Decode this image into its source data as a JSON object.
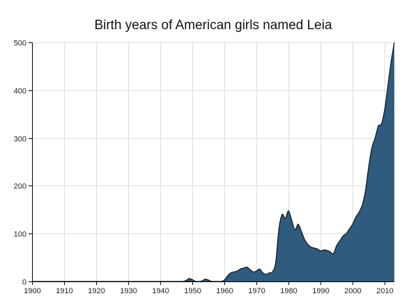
{
  "chart_data": {
    "type": "area",
    "title": "Birth years of American girls named Leia",
    "xlabel": "",
    "ylabel": "",
    "xlim": [
      1900,
      2013
    ],
    "ylim": [
      0,
      500
    ],
    "x_ticks": [
      1900,
      1910,
      1920,
      1930,
      1940,
      1950,
      1960,
      1970,
      1980,
      1990,
      2000,
      2010
    ],
    "y_ticks": [
      0,
      100,
      200,
      300,
      400,
      500
    ],
    "grid": true,
    "fill_color": "#2e5b7e",
    "line_color": "#111111",
    "x": [
      1900,
      1946,
      1947,
      1948,
      1949,
      1950,
      1951,
      1952,
      1953,
      1954,
      1955,
      1956,
      1957,
      1958,
      1959,
      1960,
      1961,
      1962,
      1963,
      1964,
      1965,
      1966,
      1967,
      1968,
      1969,
      1970,
      1971,
      1972,
      1973,
      1974,
      1975,
      1976,
      1977,
      1978,
      1979,
      1980,
      1981,
      1982,
      1983,
      1984,
      1985,
      1986,
      1987,
      1988,
      1989,
      1990,
      1991,
      1992,
      1993,
      1994,
      1995,
      1996,
      1997,
      1998,
      1999,
      2000,
      2001,
      2002,
      2003,
      2004,
      2005,
      2006,
      2007,
      2008,
      2009,
      2010,
      2011,
      2012,
      2013
    ],
    "values": [
      0,
      0,
      0,
      2,
      6,
      4,
      0,
      0,
      1,
      5,
      3,
      0,
      0,
      0,
      0,
      3,
      12,
      18,
      20,
      22,
      26,
      28,
      30,
      25,
      20,
      22,
      26,
      18,
      15,
      18,
      20,
      40,
      110,
      140,
      132,
      148,
      128,
      108,
      120,
      105,
      88,
      78,
      72,
      70,
      68,
      64,
      66,
      65,
      62,
      58,
      75,
      85,
      95,
      100,
      110,
      120,
      135,
      145,
      160,
      190,
      240,
      280,
      300,
      325,
      330,
      360,
      410,
      460,
      500
    ]
  }
}
